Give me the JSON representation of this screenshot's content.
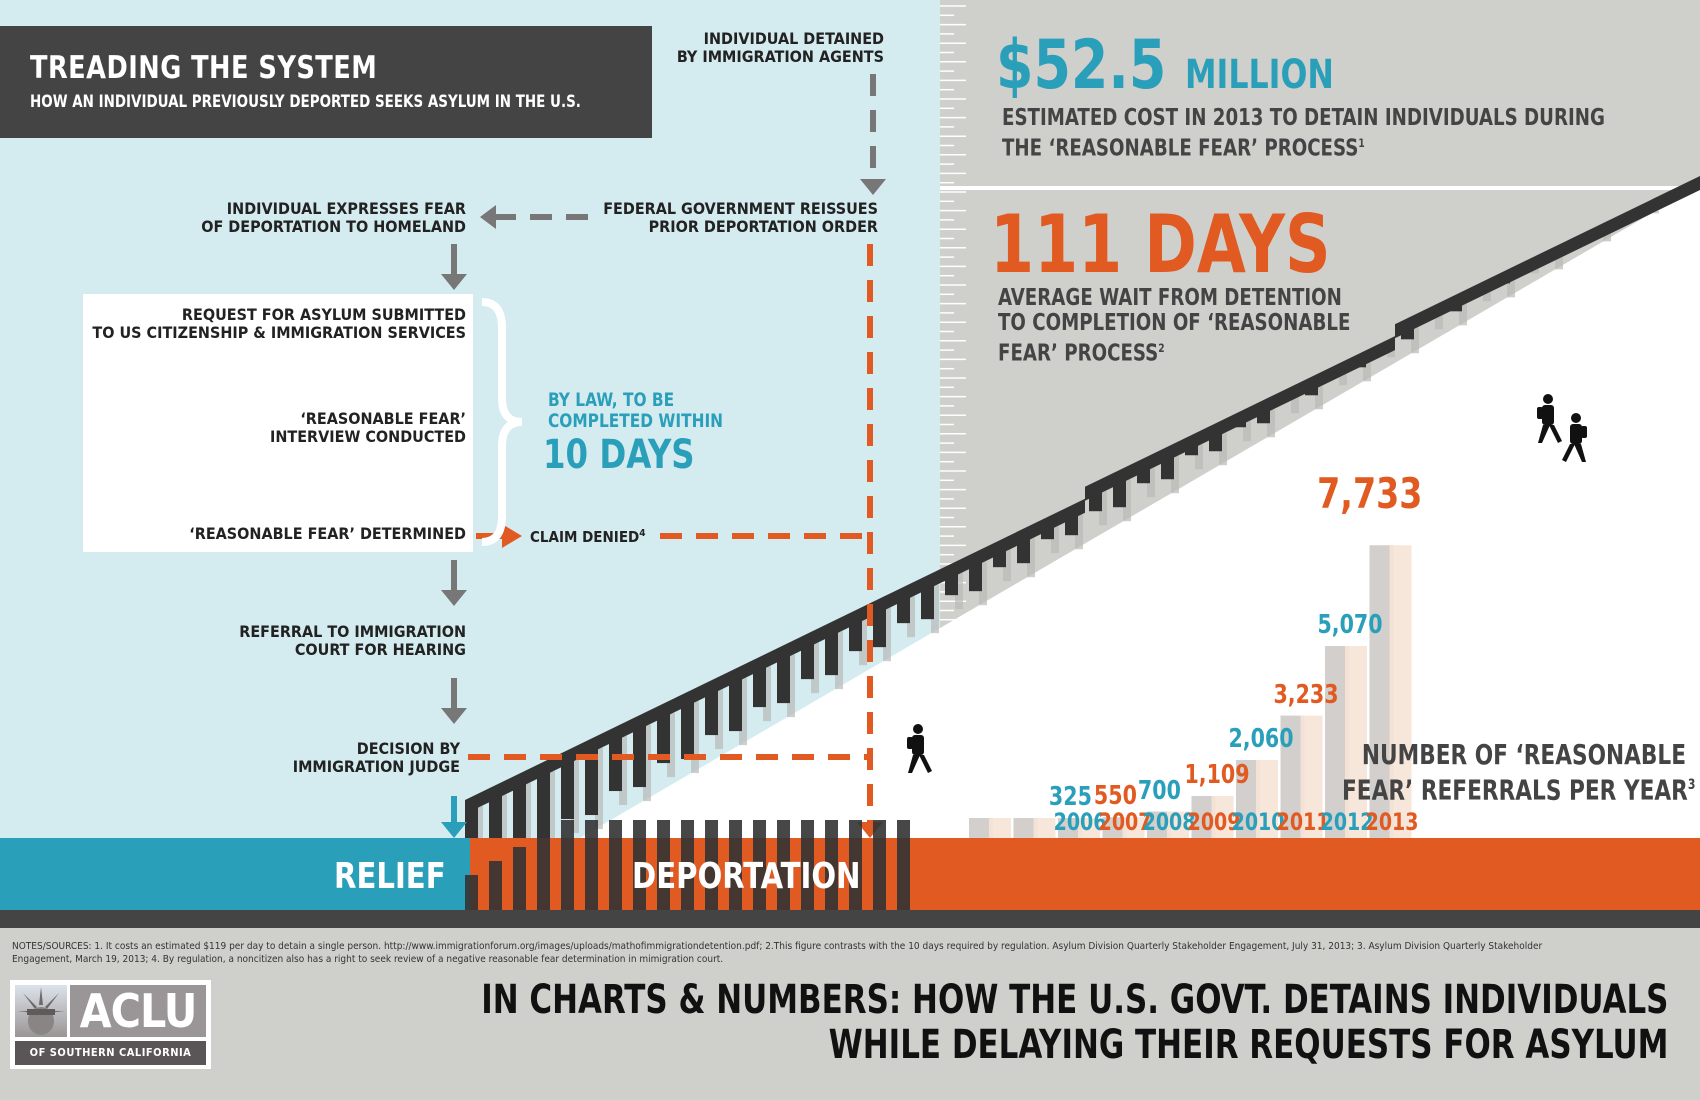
{
  "header": {
    "title": "TREADING THE SYSTEM",
    "subtitle": "HOW AN INDIVIDUAL PREVIOUSLY DEPORTED SEEKS ASYLUM IN THE U.S."
  },
  "flow": {
    "detained": [
      "INDIVIDUAL DETAINED",
      "BY IMMIGRATION AGENTS"
    ],
    "reissue": [
      "FEDERAL GOVERNMENT REISSUES",
      "PRIOR DEPORTATION ORDER"
    ],
    "express_fear": [
      "INDIVIDUAL EXPRESSES FEAR",
      "OF DEPORTATION TO HOMELAND"
    ],
    "asylum_request": [
      "REQUEST FOR ASYLUM SUBMITTED",
      "TO US CITIZENSHIP & IMMIGRATION SERVICES"
    ],
    "interview": [
      "‘REASONABLE FEAR’",
      "INTERVIEW CONDUCTED"
    ],
    "determined": "‘REASONABLE FEAR’ DETERMINED",
    "claim_denied": "CLAIM DENIED",
    "claim_denied_note": "4",
    "referral": [
      "REFERRAL TO IMMIGRATION",
      "COURT FOR HEARING"
    ],
    "decision": [
      "DECISION BY",
      "IMMIGRATION JUDGE"
    ],
    "law_note": [
      "BY LAW, TO BE",
      "COMPLETED WITHIN"
    ],
    "law_days": "10 DAYS",
    "outcome_relief": "RELIEF",
    "outcome_deportation": "DEPORTATION"
  },
  "stats": {
    "cost_value": "$52.5",
    "cost_unit": "MILLION",
    "cost_desc": [
      "ESTIMATED COST IN 2013 TO DETAIN INDIVIDUALS DURING",
      "THE ‘REASONABLE FEAR’ PROCESS"
    ],
    "cost_note": "1",
    "days_value": "111 DAYS",
    "days_desc": [
      "AVERAGE WAIT FROM DETENTION",
      "TO COMPLETION OF ‘REASONABLE",
      "FEAR’ PROCESS"
    ],
    "days_note": "2"
  },
  "chart_data": {
    "type": "bar",
    "title": "NUMBER OF ‘REASONABLE FEAR’ REFERRALS PER YEAR",
    "title_note": "3",
    "categories": [
      "2006",
      "2007",
      "2008",
      "2009",
      "2010",
      "2011",
      "2012",
      "2013"
    ],
    "values": [
      325,
      550,
      700,
      1109,
      2060,
      3233,
      5070,
      7733
    ],
    "value_labels": [
      "325",
      "550",
      "700",
      "1,109",
      "2,060",
      "3,233",
      "5,070",
      "7,733"
    ],
    "label_colors": [
      "#2a9fba",
      "#e05a22",
      "#2a9fba",
      "#e05a22",
      "#2a9fba",
      "#e05a22",
      "#2a9fba",
      "#e05a22"
    ],
    "xlabel": "",
    "ylabel": "",
    "grid": false
  },
  "notes": {
    "line1": "NOTES/SOURCES: 1. It costs an estimated $119 per day to detain a single person. http://www.immigrationforum.org/images/uploads/mathofimmigrationdetention.pdf; 2.This figure contrasts with the 10 days required by regulation. Asylum Division Quarterly Stakeholder Engagement, July 31, 2013; 3. Asylum Division Quarterly Stakeholder",
    "line2": "Engagement, March 19, 2013; 4. By regulation, a noncitizen also has a right to seek review of a negative reasonable fear determination in mimigration court."
  },
  "logo": {
    "name": "ACLU",
    "sub": "OF SOUTHERN CALIFORNIA"
  },
  "headline": [
    "IN CHARTS & NUMBERS: HOW THE U.S. GOVT. DETAINS INDIVIDUALS",
    "WHILE DELAYING THEIR REQUESTS FOR ASYLUM"
  ],
  "colors": {
    "teal": "#2a9fba",
    "orange": "#e05a22",
    "dark": "#444444",
    "fence": "#333333",
    "sky": "#d4ebf0",
    "grey": "#cfd0cc"
  }
}
